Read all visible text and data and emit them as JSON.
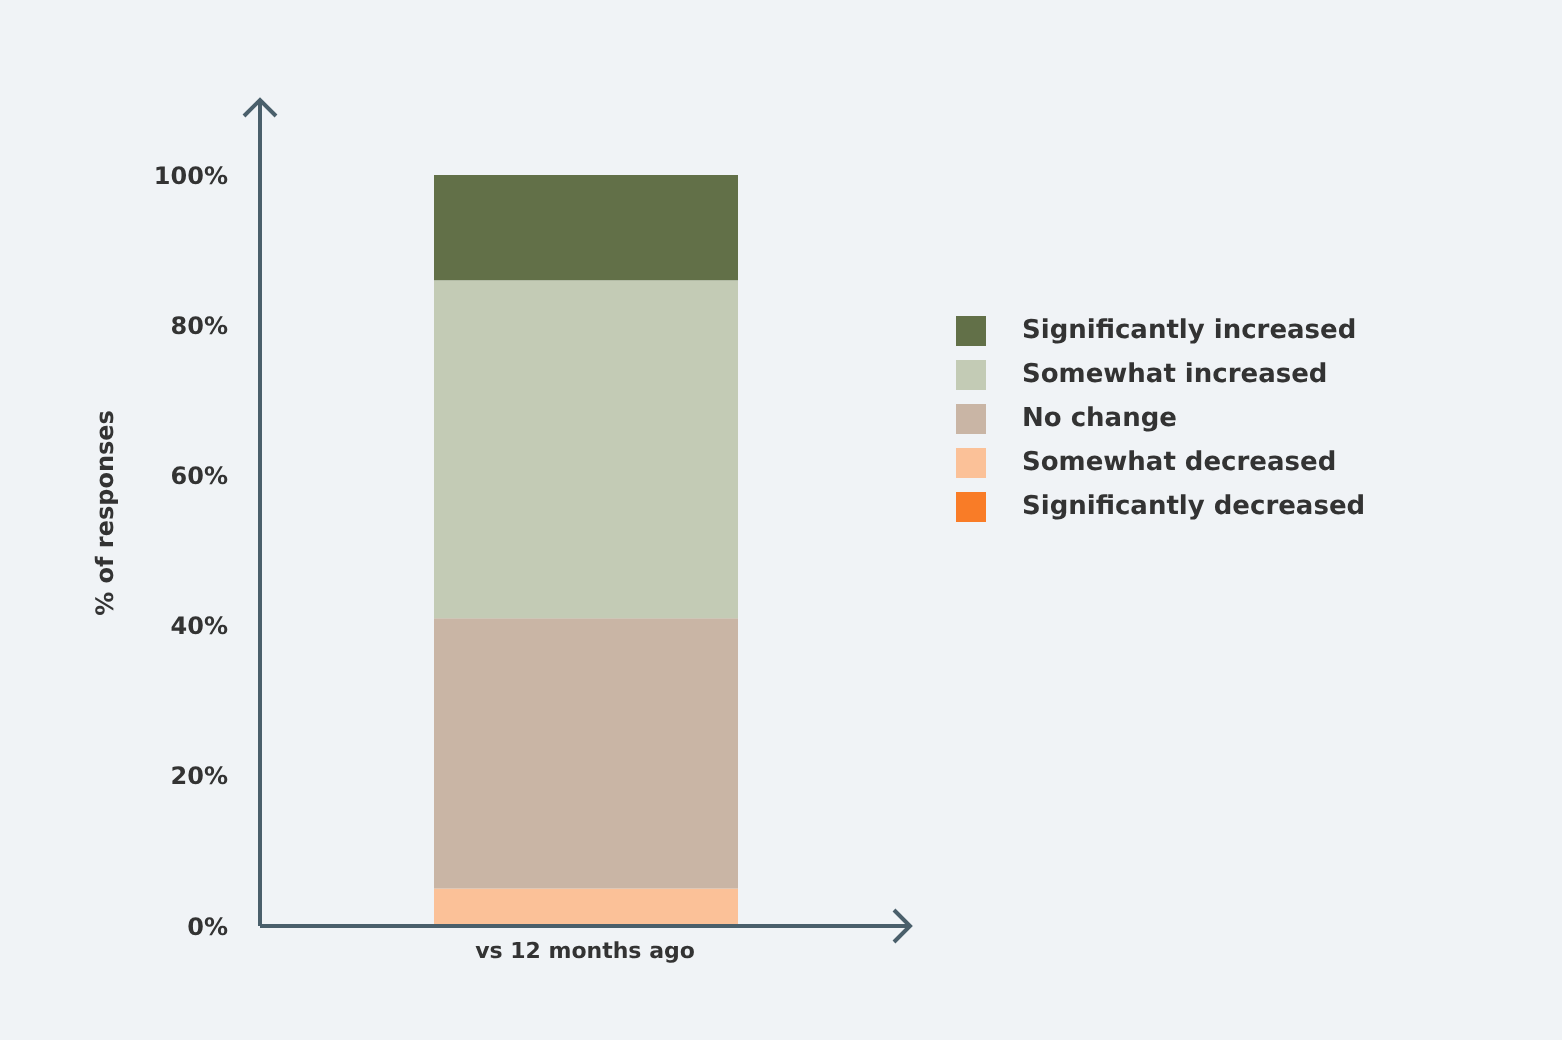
{
  "chart_data": {
    "type": "bar",
    "stacked": true,
    "ylabel": "% of responses",
    "categories": [
      "vs 12 months ago"
    ],
    "series": [
      {
        "name": "Significantly decreased",
        "color": "#f97c27",
        "values": [
          0
        ]
      },
      {
        "name": "Somewhat decreased",
        "color": "#fbc198",
        "values": [
          5
        ]
      },
      {
        "name": "No change",
        "color": "#c9b5a5",
        "values": [
          36
        ]
      },
      {
        "name": "Somewhat increased",
        "color": "#c3cbb5",
        "values": [
          45
        ]
      },
      {
        "name": "Significantly increased",
        "color": "#627048",
        "values": [
          14
        ]
      }
    ],
    "ylim": [
      0,
      110
    ],
    "yticks": [
      {
        "value": 0,
        "label": "0%"
      },
      {
        "value": 20,
        "label": "20%"
      },
      {
        "value": 40,
        "label": "40%"
      },
      {
        "value": 60,
        "label": "60%"
      },
      {
        "value": 80,
        "label": "80%"
      },
      {
        "value": 100,
        "label": "100%"
      }
    ],
    "grid": false,
    "legend": "right"
  }
}
